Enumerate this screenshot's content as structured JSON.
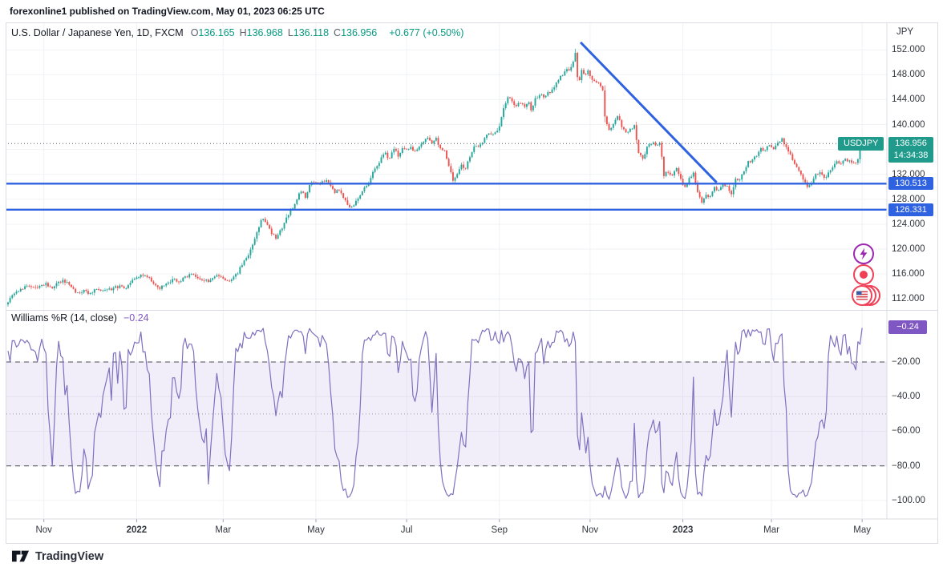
{
  "attribution": "forexonline1 published on TradingView.com, May 01, 2023 06:25 UTC",
  "footer": {
    "brand": "TradingView"
  },
  "main_chart": {
    "legend": {
      "title": "U.S. Dollar / Japanese Yen, 1D, FXCM",
      "ohlc": [
        {
          "label": "O",
          "value": "136.165"
        },
        {
          "label": "H",
          "value": "136.968"
        },
        {
          "label": "L",
          "value": "136.118"
        },
        {
          "label": "C",
          "value": "136.956"
        }
      ],
      "change": "+0.677 (+0.50%)"
    },
    "axis_currency": "JPY",
    "badges": {
      "symbol": "USDJPY",
      "price": "136.956",
      "time": "14:34:38",
      "support1": "130.513",
      "support2": "126.331"
    },
    "event_icons": [
      "flash-event",
      "record-event",
      "us-flag-events"
    ]
  },
  "indicator": {
    "title": "Williams %R (14, close)",
    "value": "−0.24",
    "badge": "−0.24"
  },
  "theme": {
    "up": "#26a69a",
    "down": "#ef5350",
    "blue": "#2f62e0",
    "purple": "#7e57c2",
    "wr_line": "#8070bf",
    "grid": "#f0f2f5",
    "separator": "#d9dce3",
    "price_line": "#565b66",
    "teal_badge": "#1f9a8b",
    "band_fill": "rgba(126,87,194,0.10)"
  },
  "chart_data": {
    "type": [
      "candlestick",
      "line"
    ],
    "panes": [
      {
        "name": "price",
        "type": "candlestick",
        "symbol": "USDJPY",
        "timeframe": "1D",
        "exchange": "FXCM",
        "ylim": [
          110.49,
          156.14
        ],
        "y_ticks": [
          {
            "v": 152,
            "label": "152.000"
          },
          {
            "v": 148,
            "label": "148.000"
          },
          {
            "v": 144,
            "label": "144.000"
          },
          {
            "v": 140,
            "label": "140.000"
          },
          {
            "v": 136,
            "label": "136.000"
          },
          {
            "v": 132,
            "label": "132.000"
          },
          {
            "v": 128,
            "label": "128.000"
          },
          {
            "v": 124,
            "label": "124.000"
          },
          {
            "v": 120,
            "label": "120.000"
          },
          {
            "v": 116,
            "label": "116.000"
          },
          {
            "v": 112,
            "label": "112.000"
          }
        ],
        "last_candle": {
          "o": 136.165,
          "h": 136.968,
          "l": 136.118,
          "c": 136.956
        },
        "price_line": 136.956,
        "horizontal_lines": [
          {
            "price": 130.513,
            "label": "130.513"
          },
          {
            "price": 126.331,
            "label": "126.331"
          }
        ],
        "trendline": {
          "from": {
            "day": 271.5,
            "price": 153.2
          },
          "to": {
            "day": 336,
            "price": 130.7
          }
        },
        "close_anchors": [
          [
            0,
            111.6
          ],
          [
            2,
            112.5
          ],
          [
            4,
            113.0
          ],
          [
            6,
            113.6
          ],
          [
            9,
            114.2
          ],
          [
            12,
            113.7
          ],
          [
            15,
            114.0
          ],
          [
            18,
            114.4
          ],
          [
            21,
            113.9
          ],
          [
            24,
            114.6
          ],
          [
            26,
            115.1
          ],
          [
            29,
            114.3
          ],
          [
            32,
            113.1
          ],
          [
            34,
            112.9
          ],
          [
            36,
            113.4
          ],
          [
            39,
            112.8
          ],
          [
            41,
            113.4
          ],
          [
            44,
            113.2
          ],
          [
            47,
            113.5
          ],
          [
            50,
            113.7
          ],
          [
            53,
            114.1
          ],
          [
            56,
            113.6
          ],
          [
            58,
            114.6
          ],
          [
            61,
            115.3
          ],
          [
            63,
            116.0
          ],
          [
            66,
            115.6
          ],
          [
            68,
            114.9
          ],
          [
            70,
            114.0
          ],
          [
            72,
            113.7
          ],
          [
            75,
            114.3
          ],
          [
            78,
            115.1
          ],
          [
            81,
            114.8
          ],
          [
            84,
            115.4
          ],
          [
            87,
            116.1
          ],
          [
            90,
            115.5
          ],
          [
            92,
            115.0
          ],
          [
            95,
            114.9
          ],
          [
            98,
            115.6
          ],
          [
            100,
            115.8
          ],
          [
            102,
            115.1
          ],
          [
            104,
            114.8
          ],
          [
            107,
            115.4
          ],
          [
            109,
            116.2
          ],
          [
            111,
            117.6
          ],
          [
            113,
            118.6
          ],
          [
            115,
            119.8
          ],
          [
            117,
            121.4
          ],
          [
            119,
            123.7
          ],
          [
            121,
            125.1
          ],
          [
            123,
            123.8
          ],
          [
            125,
            122.5
          ],
          [
            127,
            121.9
          ],
          [
            129,
            122.9
          ],
          [
            131,
            124.1
          ],
          [
            133,
            125.6
          ],
          [
            135,
            126.5
          ],
          [
            137,
            128.0
          ],
          [
            139,
            129.4
          ],
          [
            141,
            128.4
          ],
          [
            143,
            130.1
          ],
          [
            145,
            130.9
          ],
          [
            147,
            130.4
          ],
          [
            149,
            130.8
          ],
          [
            151,
            131.2
          ],
          [
            153,
            130.3
          ],
          [
            155,
            129.1
          ],
          [
            157,
            129.6
          ],
          [
            159,
            128.1
          ],
          [
            161,
            127.2
          ],
          [
            163,
            126.6
          ],
          [
            165,
            127.6
          ],
          [
            167,
            128.8
          ],
          [
            169,
            129.9
          ],
          [
            171,
            130.8
          ],
          [
            173,
            132.3
          ],
          [
            175,
            133.2
          ],
          [
            177,
            134.8
          ],
          [
            179,
            135.3
          ],
          [
            181,
            134.4
          ],
          [
            183,
            136.3
          ],
          [
            185,
            135.1
          ],
          [
            187,
            136.1
          ],
          [
            189,
            135.8
          ],
          [
            191,
            136.2
          ],
          [
            193,
            135.6
          ],
          [
            195,
            136.6
          ],
          [
            197,
            137.3
          ],
          [
            199,
            137.9
          ],
          [
            201,
            137.1
          ],
          [
            203,
            137.9
          ],
          [
            205,
            136.0
          ],
          [
            207,
            135.7
          ],
          [
            209,
            133.3
          ],
          [
            211,
            131.0
          ],
          [
            213,
            132.1
          ],
          [
            215,
            133.5
          ],
          [
            217,
            132.9
          ],
          [
            219,
            134.8
          ],
          [
            221,
            136.7
          ],
          [
            223,
            136.4
          ],
          [
            225,
            137.3
          ],
          [
            227,
            138.6
          ],
          [
            229,
            138.2
          ],
          [
            231,
            138.5
          ],
          [
            233,
            139.8
          ],
          [
            235,
            142.4
          ],
          [
            237,
            144.6
          ],
          [
            239,
            143.6
          ],
          [
            241,
            142.9
          ],
          [
            243,
            143.5
          ],
          [
            245,
            143.0
          ],
          [
            247,
            143.8
          ],
          [
            248,
            142.3
          ],
          [
            250,
            144.2
          ],
          [
            252,
            144.7
          ],
          [
            254,
            144.5
          ],
          [
            256,
            145.0
          ],
          [
            258,
            145.6
          ],
          [
            260,
            146.6
          ],
          [
            262,
            147.6
          ],
          [
            264,
            148.5
          ],
          [
            266,
            148.8
          ],
          [
            268,
            149.9
          ],
          [
            269,
            151.5
          ],
          [
            270,
            147.8
          ],
          [
            271,
            147.2
          ],
          [
            272,
            148.8
          ],
          [
            274,
            147.9
          ],
          [
            275,
            148.6
          ],
          [
            277,
            147.4
          ],
          [
            279,
            146.8
          ],
          [
            281,
            146.3
          ],
          [
            282,
            145.6
          ],
          [
            283,
            141.2
          ],
          [
            285,
            139.0
          ],
          [
            287,
            140.2
          ],
          [
            289,
            141.4
          ],
          [
            291,
            139.7
          ],
          [
            293,
            138.7
          ],
          [
            295,
            139.1
          ],
          [
            297,
            139.8
          ],
          [
            299,
            135.4
          ],
          [
            301,
            134.4
          ],
          [
            303,
            136.5
          ],
          [
            305,
            137.1
          ],
          [
            307,
            136.8
          ],
          [
            309,
            137.0
          ],
          [
            310,
            134.8
          ],
          [
            311,
            131.9
          ],
          [
            313,
            132.4
          ],
          [
            315,
            131.8
          ],
          [
            317,
            133.0
          ],
          [
            319,
            131.2
          ],
          [
            321,
            129.9
          ],
          [
            323,
            131.4
          ],
          [
            325,
            132.1
          ],
          [
            327,
            129.0
          ],
          [
            329,
            127.5
          ],
          [
            331,
            128.7
          ],
          [
            333,
            128.3
          ],
          [
            335,
            129.9
          ],
          [
            337,
            129.4
          ],
          [
            339,
            130.2
          ],
          [
            341,
            130.0
          ],
          [
            343,
            129.0
          ],
          [
            345,
            131.1
          ],
          [
            347,
            131.4
          ],
          [
            349,
            132.6
          ],
          [
            351,
            133.9
          ],
          [
            353,
            134.3
          ],
          [
            355,
            134.9
          ],
          [
            357,
            136.1
          ],
          [
            359,
            136.0
          ],
          [
            361,
            136.7
          ],
          [
            363,
            136.0
          ],
          [
            365,
            137.1
          ],
          [
            367,
            137.8
          ],
          [
            369,
            136.2
          ],
          [
            371,
            135.1
          ],
          [
            373,
            133.6
          ],
          [
            375,
            132.7
          ],
          [
            377,
            131.4
          ],
          [
            379,
            129.9
          ],
          [
            381,
            130.8
          ],
          [
            383,
            131.9
          ],
          [
            385,
            132.4
          ],
          [
            387,
            131.4
          ],
          [
            389,
            132.2
          ],
          [
            391,
            133.2
          ],
          [
            393,
            134.1
          ],
          [
            395,
            133.5
          ],
          [
            397,
            134.5
          ],
          [
            399,
            134.1
          ],
          [
            401,
            133.7
          ],
          [
            403,
            134.2
          ],
          [
            404,
            136.2
          ],
          [
            405,
            136.956
          ]
        ]
      },
      {
        "name": "williams_r",
        "type": "line",
        "period": 14,
        "source": "close",
        "derived_from": "price pane OHLC",
        "last_value": -0.24,
        "ylim": [
          1.76,
          -106.98
        ],
        "levels": {
          "overbought": -20,
          "middle": -50,
          "oversold": -80
        },
        "y_ticks": [
          {
            "v": -20,
            "label": "−20.00"
          },
          {
            "v": -40,
            "label": "−40.00"
          },
          {
            "v": -60,
            "label": "−60.00"
          },
          {
            "v": -80,
            "label": "−80.00"
          },
          {
            "v": -100,
            "label": "−100.00"
          }
        ]
      }
    ],
    "x_axis": {
      "total_days": 406,
      "labels": [
        {
          "label": "Nov",
          "day": 17,
          "year": false
        },
        {
          "label": "2022",
          "day": 61,
          "year": true
        },
        {
          "label": "Mar",
          "day": 102,
          "year": false
        },
        {
          "label": "May",
          "day": 146,
          "year": false
        },
        {
          "label": "Jul",
          "day": 189,
          "year": false
        },
        {
          "label": "Sep",
          "day": 233,
          "year": false
        },
        {
          "label": "Nov",
          "day": 276,
          "year": false
        },
        {
          "label": "2023",
          "day": 320,
          "year": true
        },
        {
          "label": "Mar",
          "day": 362,
          "year": false
        },
        {
          "label": "May",
          "day": 405,
          "year": false
        }
      ]
    }
  }
}
